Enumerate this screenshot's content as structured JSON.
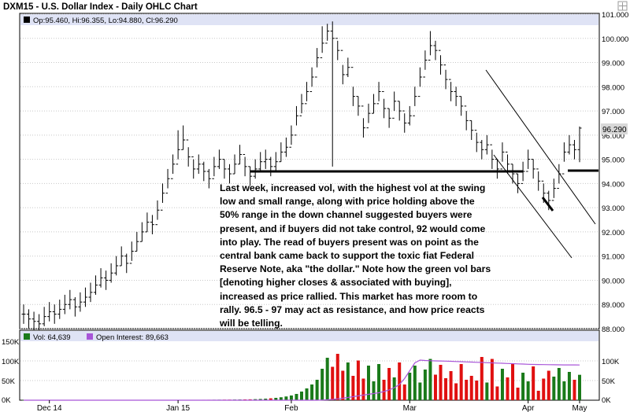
{
  "title": "DXM15 - U.S. Dollar Index - Daily OHLC Chart",
  "ohlc_readout": "Op:95.460, Hi:96.355, Lo:94.880, Cl:96.290",
  "last_price_label": "96.290",
  "volume_legend": "Vol: 64,639",
  "oi_legend": "Open Interest: 89,663",
  "annotation": "Last week, increased vol, with the highest vol at the swing low and small range, along with price holding above the 50% range in the down channel suggested buyers were present, and if buyers did not take control, 92 would come into play.  The read of buyers present was on point as the central bank came back to support the toxic fiat Federal Reserve Note, aka \"the dollar.\" Note how the green vol bars [denoting higher closes & associated with buying], increased as price rallied.  This market has more room to rally.  96.5 - 97 may act as resistance, and how price reacts will be telling.",
  "colors": {
    "up_volume": "#1a7a1a",
    "down_volume": "#e01010",
    "open_interest": "#a855d8",
    "price_bars": "#000000",
    "legend_bg": "#dfe3f5"
  },
  "chart_data": [
    {
      "type": "ohlc",
      "ylim": [
        88,
        101
      ],
      "y_ticks": [
        "88.000",
        "89.000",
        "90.000",
        "91.000",
        "92.000",
        "93.000",
        "94.000",
        "95.000",
        "96.000",
        "97.000",
        "98.000",
        "99.000",
        "100.000",
        "101.000"
      ],
      "x_ticks": [
        "Dec 14",
        "Jan 15",
        "Feb",
        "Mar",
        "Apr",
        "May"
      ],
      "closes": [
        88.6,
        88.4,
        88.3,
        88.2,
        88.5,
        88.7,
        88.6,
        88.8,
        89.0,
        89.2,
        88.9,
        89.1,
        89.3,
        89.5,
        89.8,
        90.1,
        90.0,
        90.3,
        90.6,
        91.0,
        90.7,
        91.2,
        91.6,
        92.0,
        92.4,
        92.3,
        92.9,
        93.6,
        94.2,
        94.8,
        95.4,
        95.8,
        95.1,
        94.6,
        94.8,
        94.5,
        94.2,
        94.7,
        95.0,
        94.6,
        94.4,
        94.8,
        95.2,
        94.7,
        94.3,
        94.6,
        94.9,
        95.0,
        94.7,
        94.9,
        95.3,
        95.5,
        96.0,
        96.8,
        97.3,
        97.8,
        98.4,
        99.2,
        99.8,
        100.3,
        100.0,
        99.5,
        98.5,
        98.8,
        97.6,
        97.2,
        96.3,
        96.9,
        97.3,
        97.8,
        97.1,
        96.7,
        97.4,
        97.0,
        96.5,
        96.8,
        97.6,
        98.4,
        99.1,
        99.7,
        99.5,
        98.9,
        98.3,
        97.8,
        97.6,
        97.2,
        96.6,
        96.2,
        95.7,
        95.4,
        95.6,
        95.0,
        94.6,
        95.3,
        94.8,
        94.4,
        94.0,
        94.5,
        95.0,
        94.6,
        94.1,
        93.6,
        93.3,
        93.8,
        94.4,
        95.3,
        95.6,
        95.4,
        96.29
      ],
      "highs": [
        89.0,
        88.8,
        88.7,
        88.6,
        88.9,
        89.1,
        89.0,
        89.2,
        89.4,
        89.6,
        89.3,
        89.5,
        89.7,
        89.9,
        90.2,
        90.5,
        90.4,
        90.7,
        91.0,
        91.4,
        91.1,
        91.6,
        92.0,
        92.4,
        92.8,
        92.7,
        93.3,
        94.0,
        94.6,
        95.2,
        96.2,
        96.4,
        95.5,
        95.0,
        95.2,
        94.9,
        94.6,
        95.1,
        95.4,
        95.0,
        94.8,
        95.2,
        95.6,
        95.1,
        94.7,
        95.0,
        95.3,
        95.4,
        95.1,
        95.3,
        95.7,
        95.9,
        96.4,
        97.2,
        97.7,
        98.2,
        98.8,
        99.6,
        100.5,
        100.6,
        100.7,
        99.9,
        98.9,
        99.2,
        98.0,
        97.6,
        96.7,
        97.3,
        97.7,
        98.2,
        97.5,
        97.1,
        97.8,
        97.4,
        96.9,
        97.2,
        98.0,
        98.8,
        99.5,
        100.3,
        99.9,
        99.3,
        98.7,
        98.2,
        98.0,
        97.6,
        97.0,
        96.6,
        96.1,
        95.8,
        96.0,
        95.4,
        95.0,
        95.7,
        95.2,
        94.8,
        94.4,
        94.9,
        95.4,
        95.0,
        94.5,
        94.0,
        93.7,
        94.2,
        94.8,
        95.7,
        96.0,
        95.8,
        96.355
      ],
      "lows": [
        88.2,
        88.0,
        87.9,
        87.8,
        88.1,
        88.3,
        88.2,
        88.4,
        88.6,
        88.8,
        88.5,
        88.7,
        88.9,
        89.1,
        89.4,
        89.7,
        89.6,
        89.9,
        90.2,
        90.6,
        90.3,
        90.8,
        91.2,
        91.6,
        92.0,
        91.9,
        92.5,
        93.2,
        93.8,
        94.4,
        95.0,
        95.4,
        94.7,
        94.2,
        94.4,
        94.1,
        93.8,
        94.3,
        94.6,
        94.2,
        94.0,
        94.4,
        94.8,
        94.3,
        93.9,
        94.2,
        94.5,
        94.6,
        94.3,
        94.5,
        94.9,
        95.1,
        95.6,
        96.4,
        96.9,
        97.4,
        98.0,
        98.8,
        99.4,
        99.9,
        94.7,
        99.1,
        98.1,
        98.4,
        97.2,
        96.8,
        95.9,
        96.5,
        96.9,
        97.4,
        96.7,
        96.3,
        97.0,
        96.6,
        96.1,
        96.4,
        97.2,
        98.0,
        98.7,
        99.3,
        99.1,
        98.5,
        97.9,
        97.4,
        97.2,
        96.8,
        96.2,
        95.8,
        95.3,
        95.0,
        95.2,
        94.6,
        94.2,
        94.9,
        94.4,
        94.0,
        93.6,
        94.1,
        94.6,
        94.2,
        93.7,
        93.2,
        92.9,
        93.4,
        94.0,
        94.9,
        95.2,
        95.0,
        94.88
      ]
    },
    {
      "type": "bar",
      "ylim": [
        0,
        150000
      ],
      "y_ticks_left": [
        "150K",
        "100K",
        "50K",
        "0K"
      ],
      "y_ticks_right": [
        "100K",
        "50K",
        "0K"
      ],
      "series": [
        {
          "name": "Vol",
          "values": [
            300,
            320,
            280,
            350,
            300,
            310,
            330,
            290,
            340,
            360,
            320,
            300,
            350,
            380,
            340,
            360,
            400,
            380,
            420,
            450,
            410,
            440,
            480,
            500,
            520,
            560,
            600,
            650,
            700,
            750,
            800,
            860,
            900,
            950,
            1000,
            1050,
            1100,
            1200,
            1300,
            1400,
            1500,
            1650,
            1800,
            2000,
            2300,
            2700,
            3200,
            3900,
            4800,
            6000,
            7500,
            9500,
            12000,
            16000,
            22000,
            30000,
            40000,
            52000,
            80000,
            108000,
            85000,
            118000,
            75000,
            96000,
            62000,
            101000,
            55000,
            88000,
            48000,
            92000,
            52000,
            82000,
            58000,
            96000,
            40000,
            70000,
            88000,
            45000,
            78000,
            105000,
            65000,
            90000,
            56000,
            74000,
            43000,
            92000,
            52000,
            62000,
            50000,
            110000,
            45000,
            105000,
            35000,
            80000,
            58000,
            92000,
            32000,
            70000,
            48000,
            86000,
            24000,
            55000,
            75000,
            60000,
            82000,
            48000,
            72000,
            52000,
            64639
          ]
        },
        {
          "name": "Open Interest",
          "values": [
            0,
            0,
            0,
            0,
            0,
            0,
            0,
            0,
            0,
            0,
            0,
            0,
            0,
            0,
            0,
            0,
            0,
            0,
            0,
            0,
            0,
            0,
            0,
            0,
            0,
            0,
            0,
            0,
            0,
            0,
            0,
            0,
            0,
            0,
            0,
            0,
            0,
            0,
            0,
            0,
            0,
            0,
            0,
            0,
            0,
            0,
            0,
            0,
            0,
            0,
            0,
            0,
            0,
            0,
            0,
            0,
            0,
            0,
            500,
            1000,
            2000,
            3500,
            5000,
            7000,
            9000,
            11000,
            13000,
            15000,
            17000,
            19000,
            22000,
            26000,
            32000,
            40000,
            55000,
            75000,
            95000,
            102000,
            101000,
            100500,
            100000,
            99800,
            99500,
            99000,
            98500,
            98000,
            97500,
            97000,
            96500,
            96000,
            95500,
            95000,
            94500,
            94000,
            93500,
            93000,
            92500,
            92000,
            91500,
            91000,
            90800,
            90600,
            90400,
            90200,
            90000,
            89900,
            89800,
            89700,
            89663
          ]
        }
      ]
    }
  ]
}
